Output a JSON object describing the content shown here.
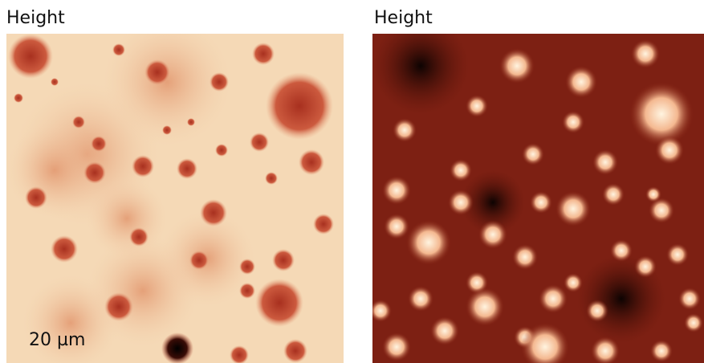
{
  "panels": [
    {
      "title": "Height",
      "scale_bar": "20 µm"
    },
    {
      "title": "Height"
    }
  ]
}
